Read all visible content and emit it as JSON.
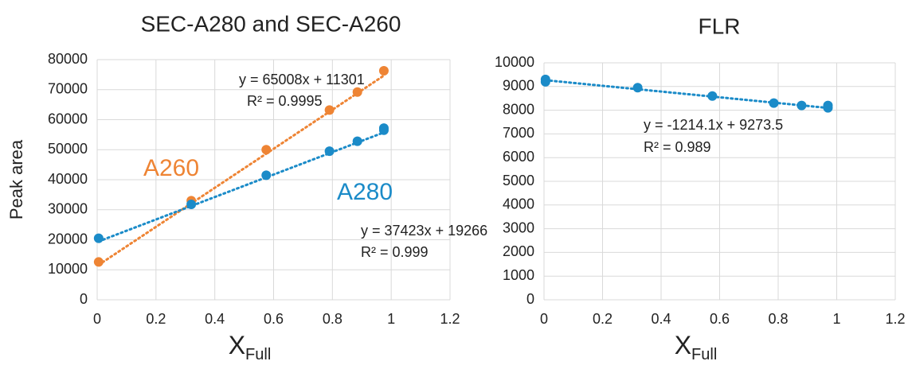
{
  "chart_data": [
    {
      "type": "scatter",
      "title": "SEC-A280 and SEC-A260",
      "ylabel": "Peak area",
      "xlabel": "X",
      "xlabel_subscript": "Full",
      "xlim": [
        0,
        1.2
      ],
      "xticks": [
        0,
        0.2,
        0.4,
        0.6,
        0.8,
        1,
        1.2
      ],
      "ylim": [
        0,
        80000
      ],
      "yticks": [
        0,
        10000,
        20000,
        30000,
        40000,
        50000,
        60000,
        70000,
        80000
      ],
      "grid": true,
      "series": [
        {
          "name": "A260",
          "color": "#ee8434",
          "x": [
            0.005,
            0.32,
            0.575,
            0.79,
            0.885,
            0.975
          ],
          "y": [
            12600,
            33000,
            50000,
            63200,
            69200,
            76300
          ],
          "trendline": {
            "slope": 65008,
            "intercept": 11301,
            "equation": "y = 65008x + 11301",
            "r2": "R² = 0.9995"
          }
        },
        {
          "name": "A280",
          "color": "#1b8bc8",
          "x": [
            0.005,
            0.32,
            0.575,
            0.79,
            0.885,
            0.975,
            0.975
          ],
          "y": [
            20500,
            31800,
            41500,
            49500,
            52800,
            57200,
            56500
          ],
          "trendline": {
            "slope": 37423,
            "intercept": 19266,
            "equation": "y = 37423x + 19266",
            "r2": "R² = 0.999"
          }
        }
      ]
    },
    {
      "type": "scatter",
      "title": "FLR",
      "xlabel": "X",
      "xlabel_subscript": "Full",
      "xlim": [
        0,
        1.2
      ],
      "xticks": [
        0,
        0.2,
        0.4,
        0.6,
        0.8,
        1,
        1.2
      ],
      "ylim": [
        0,
        10000
      ],
      "yticks": [
        0,
        1000,
        2000,
        3000,
        4000,
        5000,
        6000,
        7000,
        8000,
        9000,
        10000
      ],
      "grid": true,
      "series": [
        {
          "color": "#1b8bc8",
          "x": [
            0.005,
            0.005,
            0.32,
            0.575,
            0.785,
            0.88,
            0.97,
            0.97
          ],
          "y": [
            9300,
            9200,
            8950,
            8600,
            8300,
            8200,
            8200,
            8100
          ],
          "trendline": {
            "slope": -1214.1,
            "intercept": 9273.5,
            "equation": "y = -1214.1x + 9273.5",
            "r2": "R² = 0.989"
          }
        }
      ]
    }
  ]
}
